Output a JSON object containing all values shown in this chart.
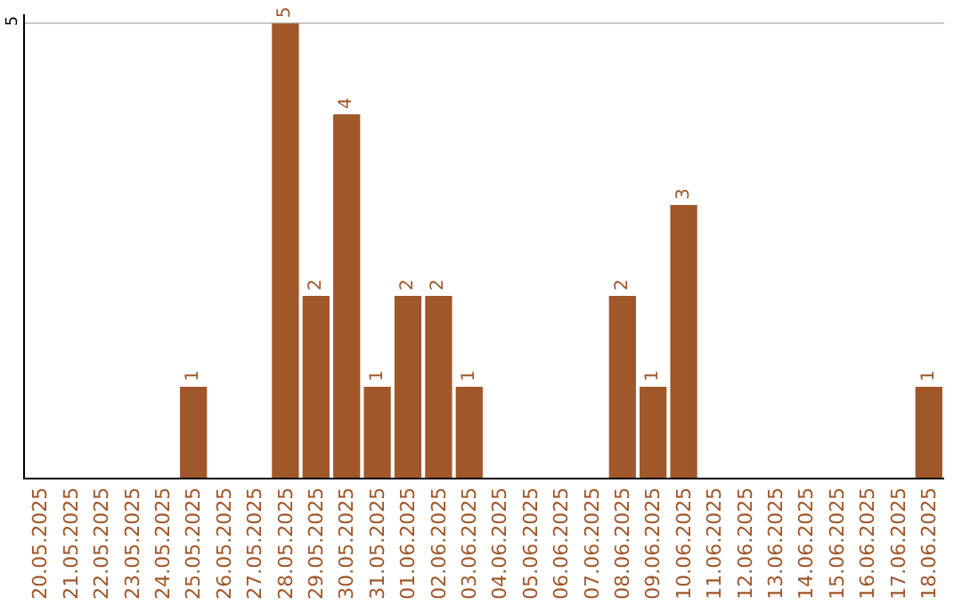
{
  "chart_data": {
    "type": "bar",
    "categories": [
      "20.05.2025",
      "21.05.2025",
      "22.05.2025",
      "23.05.2025",
      "24.05.2025",
      "25.05.2025",
      "26.05.2025",
      "27.05.2025",
      "28.05.2025",
      "29.05.2025",
      "30.05.2025",
      "31.05.2025",
      "01.06.2025",
      "02.06.2025",
      "03.06.2025",
      "04.06.2025",
      "05.06.2025",
      "06.06.2025",
      "07.06.2025",
      "08.06.2025",
      "09.06.2025",
      "10.06.2025",
      "11.06.2025",
      "12.06.2025",
      "13.06.2025",
      "14.06.2025",
      "15.06.2025",
      "16.06.2025",
      "17.06.2025",
      "18.06.2025"
    ],
    "values": [
      0,
      0,
      0,
      0,
      0,
      1,
      0,
      0,
      5,
      2,
      4,
      1,
      2,
      2,
      1,
      0,
      0,
      0,
      0,
      2,
      1,
      3,
      0,
      0,
      0,
      0,
      0,
      0,
      0,
      1
    ],
    "value_labels": [
      null,
      null,
      null,
      null,
      null,
      "1",
      null,
      null,
      "5",
      "2",
      "4",
      "1",
      "2",
      "2",
      "1",
      null,
      null,
      null,
      null,
      "2",
      "1",
      "3",
      null,
      null,
      null,
      null,
      null,
      null,
      null,
      "1"
    ],
    "color": "#a0572a",
    "ylim": [
      0,
      5.1
    ],
    "yticks": [
      5
    ],
    "grid": "y"
  }
}
